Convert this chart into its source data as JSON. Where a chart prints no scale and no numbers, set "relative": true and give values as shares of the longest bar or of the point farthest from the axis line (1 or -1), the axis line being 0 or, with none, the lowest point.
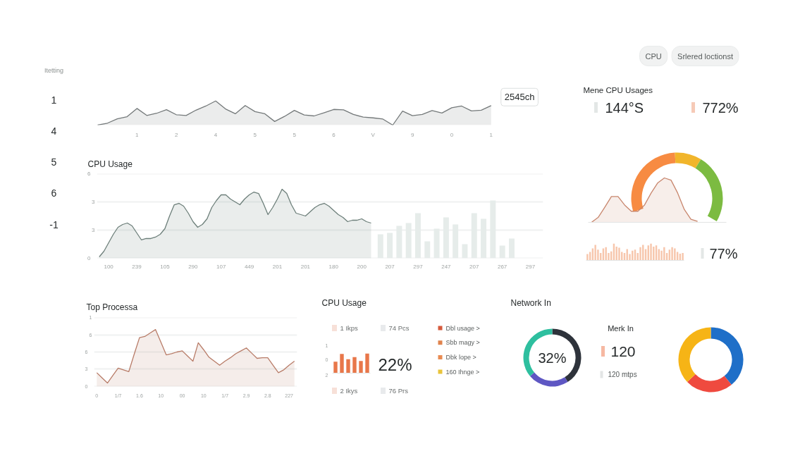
{
  "chart_data": [
    {
      "type": "other",
      "title": "Itetting",
      "categories": [
        "1",
        "4",
        "5",
        "6",
        "-1"
      ]
    },
    {
      "type": "other",
      "categories": [
        "CPU",
        "Srlered loctionst"
      ]
    },
    {
      "type": "area",
      "relative": true,
      "categories": [
        null,
        null,
        null,
        null,
        "1",
        null,
        null,
        null,
        "2",
        null,
        null,
        null,
        "4",
        null,
        null,
        null,
        "5",
        null,
        null,
        null,
        "5",
        null,
        null,
        null,
        "6",
        null,
        null,
        null,
        "V",
        null,
        null,
        null,
        "9",
        null,
        null,
        null,
        "0",
        null,
        null,
        null,
        "1"
      ],
      "values": [
        0,
        0.08,
        0.26,
        0.35,
        0.69,
        0.4,
        0.49,
        0.64,
        0.43,
        0.4,
        0.62,
        0.79,
        1.0,
        0.67,
        0.47,
        0.81,
        0.56,
        0.47,
        0.15,
        0.36,
        0.61,
        0.42,
        0.38,
        0.51,
        0.65,
        0.63,
        0.44,
        0.33,
        0.3,
        0.25,
        0,
        0.58,
        0.39,
        0.44,
        0.6,
        0.5,
        0.72,
        0.79,
        0.59,
        0.62,
        0.81
      ],
      "color": "#74797a",
      "annotations": [
        "2545ch"
      ]
    },
    {
      "type": "other",
      "title": "Mene CPU Usages",
      "categories": [
        "144°S",
        "772%"
      ],
      "colors": [
        "#e3e7e6",
        "#f6cab7"
      ]
    },
    {
      "type": "area",
      "title": "CPU Usage",
      "categories": [
        null,
        null,
        "100",
        null,
        null,
        null,
        null,
        null,
        "239",
        null,
        null,
        null,
        null,
        null,
        "105",
        null,
        null,
        null,
        null,
        null,
        "290",
        null,
        null,
        null,
        null,
        null,
        "107",
        null,
        null,
        null,
        null,
        null,
        "449",
        null,
        null,
        null,
        null,
        null,
        "201",
        null,
        null,
        null,
        null,
        null,
        "201",
        null,
        null,
        null,
        null,
        null,
        "180",
        null,
        null,
        null,
        null,
        null,
        "200",
        null,
        null,
        null,
        null,
        null,
        "207",
        null,
        null,
        null,
        null,
        null,
        "297",
        null,
        null,
        null,
        null,
        null,
        "247",
        null,
        null,
        null,
        null,
        null,
        "207",
        null,
        null,
        null,
        null,
        null,
        "267",
        null,
        null,
        null,
        null,
        null,
        "297"
      ],
      "series": [
        {
          "type": "area",
          "color": "#6d7f7a",
          "values": [
            0.1,
            0.5,
            1.1,
            1.7,
            2.2,
            2.4,
            2.5,
            2.3,
            1.8,
            1.3,
            1.4,
            1.4,
            1.5,
            1.7,
            2.1,
            3.0,
            3.8,
            3.9,
            3.7,
            3.2,
            2.6,
            2.2,
            2.4,
            2.8,
            3.6,
            4.1,
            4.5,
            4.5,
            4.2,
            4.0,
            3.8,
            4.2,
            4.5,
            4.7,
            4.6,
            3.9,
            3.1,
            3.6,
            4.2,
            4.9,
            4.6,
            3.8,
            3.2,
            3.1,
            3.0,
            3.3,
            3.6,
            3.8,
            3.9,
            3.7,
            3.4,
            3.1,
            2.9,
            2.6,
            2.7,
            2.7,
            2.8,
            2.6,
            2.5,
            null,
            null,
            null,
            null,
            null,
            null,
            null,
            null,
            null,
            null,
            null,
            null,
            null,
            null,
            null,
            null,
            null,
            null,
            null,
            null,
            null,
            null,
            null,
            null,
            null,
            null,
            null,
            null,
            null,
            null,
            null,
            null,
            null,
            null
          ]
        },
        {
          "type": "bar",
          "color": "#e6ecea",
          "values": [
            null,
            null,
            null,
            null,
            null,
            null,
            null,
            null,
            null,
            null,
            null,
            null,
            null,
            null,
            null,
            null,
            null,
            null,
            null,
            null,
            null,
            null,
            null,
            null,
            null,
            null,
            null,
            null,
            null,
            null,
            null,
            null,
            null,
            null,
            null,
            null,
            null,
            null,
            null,
            null,
            null,
            null,
            null,
            null,
            null,
            null,
            null,
            null,
            null,
            null,
            null,
            null,
            null,
            null,
            null,
            null,
            null,
            null,
            null,
            null,
            1.7,
            null,
            1.8,
            null,
            2.3,
            null,
            2.5,
            null,
            3.2,
            null,
            1.2,
            null,
            2.1,
            null,
            2.9,
            null,
            2.4,
            null,
            1.0,
            null,
            3.2,
            null,
            2.8,
            null,
            4.1,
            null,
            0.9,
            null,
            1.4,
            null,
            null,
            null,
            null
          ]
        }
      ],
      "ylim": [
        0,
        6
      ],
      "yticks": [
        0,
        {
          "value": 2,
          "label": null
        },
        {
          "value": 4,
          "label": null
        },
        6
      ],
      "grid": "y",
      "annotations": [
        "3",
        "3"
      ]
    },
    {
      "type": "donut",
      "categories": [
        null,
        null,
        null
      ],
      "values": [
        46,
        15,
        39
      ],
      "colors": [
        "#f78b42",
        "#f1b52b",
        "#7cbb41"
      ]
    },
    {
      "type": "area",
      "relative": true,
      "categories": [
        null,
        null,
        null,
        null,
        null,
        null,
        null,
        null,
        null,
        null,
        null,
        null,
        null,
        null,
        null,
        null,
        null
      ],
      "values": [
        0,
        0.11,
        0.34,
        0.58,
        0.58,
        0.39,
        0.25,
        0.25,
        0.39,
        0.66,
        0.89,
        1.0,
        0.95,
        0.66,
        0.29,
        0.07,
        0.02
      ],
      "color": "#c8866d"
    },
    {
      "type": "bar",
      "relative": true,
      "categories": [
        null,
        null,
        null,
        null,
        null,
        null,
        null,
        null,
        null,
        null,
        null,
        null,
        null,
        null,
        null,
        null,
        null,
        null,
        null,
        null,
        null,
        null,
        null,
        null,
        null,
        null,
        null,
        null,
        null,
        null,
        null,
        null,
        null,
        null,
        null,
        null,
        null
      ],
      "values": [
        0.38,
        0.51,
        0.72,
        0.93,
        0.65,
        0.44,
        0.72,
        0.79,
        0.44,
        0.54,
        1.0,
        0.82,
        0.76,
        0.51,
        0.44,
        0.68,
        0.38,
        0.58,
        0.65,
        0.44,
        0.79,
        0.93,
        0.68,
        0.9,
        1.0,
        0.82,
        0.9,
        0.68,
        0.58,
        0.79,
        0.44,
        0.65,
        0.79,
        0.72,
        0.51,
        0.4,
        0.44
      ],
      "color": "#f7c6ac"
    },
    {
      "type": "other",
      "categories": [
        "77%"
      ],
      "colors": [
        "#e3e7e6"
      ]
    },
    {
      "type": "area",
      "title": "Top Processa",
      "categories": [
        "0",
        null,
        null,
        null,
        "1/7",
        null,
        null,
        null,
        "1.6",
        null,
        null,
        null,
        "10",
        null,
        null,
        null,
        "00",
        null,
        null,
        null,
        "10",
        null,
        null,
        null,
        "1/7",
        null,
        null,
        null,
        "2.9",
        null,
        null,
        null,
        "2.8",
        null,
        null,
        null,
        "227",
        null
      ],
      "values": [
        2.4,
        1.5,
        0.6,
        1.9,
        3.2,
        2.9,
        2.6,
        5.6,
        8.5,
        8.7,
        9.3,
        9.9,
        7.7,
        5.5,
        5.7,
        6.0,
        6.2,
        5.3,
        4.4,
        7.6,
        6.4,
        5.1,
        4.4,
        3.7,
        4.4,
        5.0,
        5.7,
        6.2,
        6.7,
        5.8,
        4.9,
        5.0,
        5.0,
        3.7,
        2.4,
        2.9,
        3.7,
        4.4
      ],
      "color": "#b87c68",
      "ylim": [
        0,
        12
      ],
      "yticks": [
        0,
        3,
        6,
        {
          "value": 9,
          "label": null
        },
        {
          "value": 12,
          "label": null
        }
      ],
      "grid": "y",
      "annotations": [
        "6",
        "1"
      ]
    },
    {
      "type": "bar",
      "title": "CPU Usage",
      "relative": true,
      "categories": [
        null,
        null,
        null,
        null,
        null,
        null
      ],
      "values": [
        0.58,
        0.98,
        0.71,
        0.82,
        0.62,
        1.0
      ],
      "color": "#e8774a",
      "annotations": [
        "22%",
        "1",
        "0",
        "2"
      ]
    },
    {
      "type": "other",
      "categories": [
        "1 Ikps",
        "74 Pcs",
        "2 Ikys",
        "76 Prs"
      ],
      "colors": [
        "#f7e0d8",
        "#e8eaec",
        "#f7e0d8",
        "#e8eaec"
      ]
    },
    {
      "type": "other",
      "categories": [
        "Dbl usage >",
        "Sbb magy >",
        "Dbk lope >",
        "160 Ihnge >"
      ],
      "colors": [
        "#d65a3c",
        "#e0834d",
        "#e98b52",
        "#e9c43b"
      ]
    },
    {
      "type": "donut",
      "title": "Network In",
      "categories": [
        null,
        null,
        null
      ],
      "values": [
        41,
        23,
        36
      ],
      "colors": [
        "#2e333b",
        "#5e57c3",
        "#2ebf9f"
      ],
      "annotations": [
        "32%"
      ]
    },
    {
      "type": "other",
      "title": "Merk In",
      "categories": [
        "120",
        "120 mtps"
      ],
      "colors": [
        "#f6b8a2",
        "#e3e5e5"
      ]
    },
    {
      "type": "donut",
      "categories": [
        null,
        null,
        null
      ],
      "values": [
        39,
        24,
        37
      ],
      "colors": [
        "#1f6fc8",
        "#ef4a3f",
        "#f6b416"
      ]
    }
  ]
}
